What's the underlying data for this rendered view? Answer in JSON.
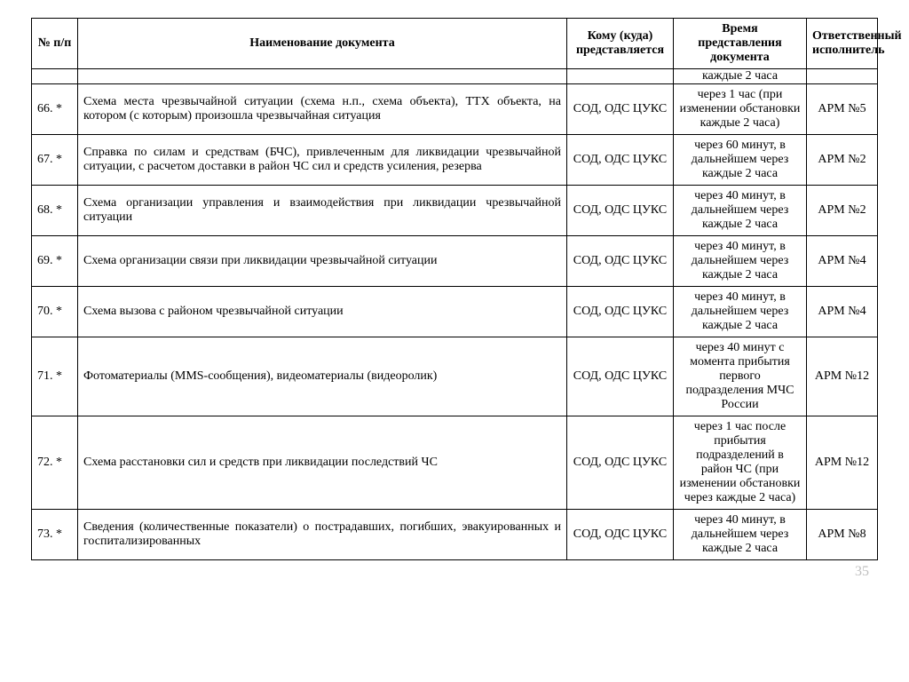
{
  "table": {
    "headers": {
      "num": "№ п/п",
      "name": "Наименование документа",
      "to": "Кому (куда) представляется",
      "time": "Время представления документа",
      "resp": "Ответственный исполнитель"
    },
    "orphan_time": "каждые 2 часа",
    "rows": [
      {
        "num": "66.  *",
        "name": "Схема места чрезвычайной ситуации (схема н.п., схема объекта), ТТХ объекта, на котором (с которым) произошла чрезвычайная ситуация",
        "to": "СОД, ОДС ЦУКС",
        "time": "через 1 час (при изменении обстановки каждые 2 часа)",
        "resp": "АРМ №5"
      },
      {
        "num": "67.  *",
        "name": "Справка по силам и средствам (БЧС), привлеченным для ликвидации чрезвычайной ситуации, с расчетом доставки в район ЧС сил и средств усиления, резерва",
        "to": "СОД, ОДС ЦУКС",
        "time": "через 60 минут, в дальнейшем через каждые 2 часа",
        "resp": "АРМ №2"
      },
      {
        "num": "68.  *",
        "name": "Схема организации управления и взаимодействия при ликвидации чрезвычайной ситуации",
        "to": "СОД, ОДС ЦУКС",
        "time": "через 40 минут, в дальнейшем через каждые 2 часа",
        "resp": "АРМ №2"
      },
      {
        "num": "69.  *",
        "name": "Схема организации связи при ликвидации чрезвычайной ситуации",
        "to": "СОД, ОДС ЦУКС",
        "time": "через 40 минут, в дальнейшем через каждые 2 часа",
        "resp": "АРМ №4"
      },
      {
        "num": "70.  *",
        "name": "Схема вызова с районом чрезвычайной ситуации",
        "to": "СОД, ОДС ЦУКС",
        "time": "через 40 минут, в дальнейшем через каждые 2 часа",
        "resp": "АРМ №4"
      },
      {
        "num": "71.  *",
        "name": "Фотоматериалы (MMS-сообщения), видеоматериалы (видеоролик)",
        "to": "СОД, ОДС ЦУКС",
        "time": "через 40 минут с момента прибытия первого подразделения МЧС России",
        "resp": "АРМ №12"
      },
      {
        "num": "72.  *",
        "name": "Схема расстановки сил и средств при ликвидации последствий ЧС",
        "to": "СОД, ОДС ЦУКС",
        "time": "через 1 час после прибытия подразделений в район ЧС (при изменении обстановки через каждые 2 часа)",
        "resp": "АРМ №12"
      },
      {
        "num": "73.  *",
        "name": "Сведения (количественные показатели) о пострадавших, погибших, эвакуированных и госпитализированных",
        "to": "СОД, ОДС ЦУКС",
        "time": "через 40 минут, в дальнейшем через каждые 2 часа",
        "resp": "АРМ №8"
      }
    ]
  },
  "page_number": "35"
}
